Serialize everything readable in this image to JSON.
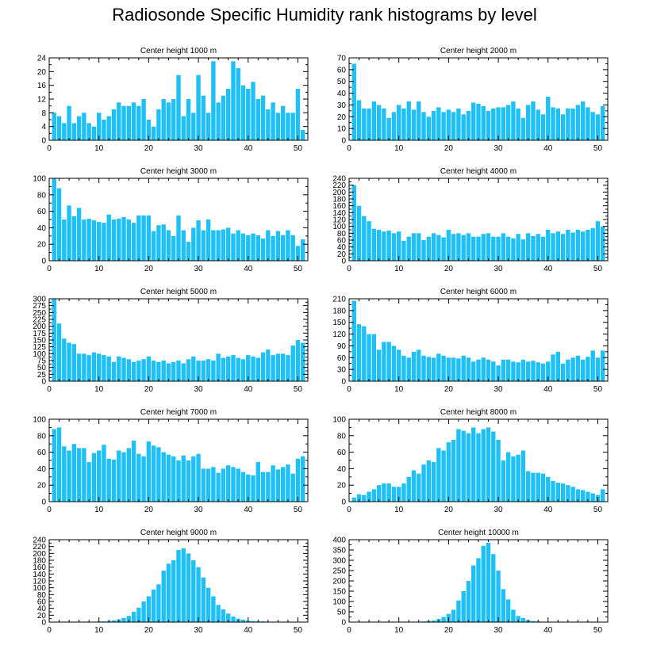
{
  "title": "Radiosonde Specific Humidity rank histograms by level",
  "colors": {
    "bar": "#1ec0f5",
    "axis": "#000000",
    "background": "#ffffff"
  },
  "chart_data": [
    {
      "type": "bar",
      "title": "Center height 1000 m",
      "xlim": [
        0,
        52
      ],
      "ylim": [
        0,
        24
      ],
      "xticks": [
        0,
        10,
        20,
        30,
        40,
        50
      ],
      "yticks": [
        0,
        4,
        8,
        12,
        16,
        20,
        24
      ],
      "x": [
        1,
        2,
        3,
        4,
        5,
        6,
        7,
        8,
        9,
        10,
        11,
        12,
        13,
        14,
        15,
        16,
        17,
        18,
        19,
        20,
        21,
        22,
        23,
        24,
        25,
        26,
        27,
        28,
        29,
        30,
        31,
        32,
        33,
        34,
        35,
        36,
        37,
        38,
        39,
        40,
        41,
        42,
        43,
        44,
        45,
        46,
        47,
        48,
        49,
        50,
        51
      ],
      "values": [
        8,
        7,
        5,
        10,
        5,
        7,
        8,
        5,
        4,
        8,
        6,
        7,
        9,
        11,
        10,
        10,
        11,
        10,
        12,
        6,
        4,
        9,
        12,
        11,
        12,
        19,
        7,
        12,
        8,
        19,
        13,
        8,
        23,
        11,
        13,
        15,
        23,
        21,
        16,
        15,
        17,
        12,
        13,
        9,
        11,
        8,
        10,
        8,
        8,
        15,
        3
      ]
    },
    {
      "type": "bar",
      "title": "Center height 2000 m",
      "xlim": [
        0,
        52
      ],
      "ylim": [
        0,
        70
      ],
      "xticks": [
        0,
        10,
        20,
        30,
        40,
        50
      ],
      "yticks": [
        0,
        10,
        20,
        30,
        40,
        50,
        60,
        70
      ],
      "x": [
        1,
        2,
        3,
        4,
        5,
        6,
        7,
        8,
        9,
        10,
        11,
        12,
        13,
        14,
        15,
        16,
        17,
        18,
        19,
        20,
        21,
        22,
        23,
        24,
        25,
        26,
        27,
        28,
        29,
        30,
        31,
        32,
        33,
        34,
        35,
        36,
        37,
        38,
        39,
        40,
        41,
        42,
        43,
        44,
        45,
        46,
        47,
        48,
        49,
        50,
        51
      ],
      "values": [
        65,
        34,
        27,
        27,
        33,
        30,
        27,
        19,
        24,
        30,
        27,
        33,
        26,
        33,
        24,
        20,
        25,
        28,
        24,
        26,
        24,
        27,
        22,
        25,
        32,
        31,
        29,
        25,
        27,
        28,
        28,
        30,
        33,
        27,
        19,
        30,
        33,
        26,
        22,
        37,
        28,
        27,
        22,
        27,
        27,
        30,
        33,
        28,
        24,
        22,
        29
      ]
    },
    {
      "type": "bar",
      "title": "Center height 3000 m",
      "xlim": [
        0,
        52
      ],
      "ylim": [
        0,
        100
      ],
      "xticks": [
        0,
        10,
        20,
        30,
        40,
        50
      ],
      "yticks": [
        0,
        20,
        40,
        60,
        80,
        100
      ],
      "x": [
        1,
        2,
        3,
        4,
        5,
        6,
        7,
        8,
        9,
        10,
        11,
        12,
        13,
        14,
        15,
        16,
        17,
        18,
        19,
        20,
        21,
        22,
        23,
        24,
        25,
        26,
        27,
        28,
        29,
        30,
        31,
        32,
        33,
        34,
        35,
        36,
        37,
        38,
        39,
        40,
        41,
        42,
        43,
        44,
        45,
        46,
        47,
        48,
        49,
        50,
        51
      ],
      "values": [
        100,
        88,
        50,
        67,
        54,
        64,
        50,
        51,
        49,
        47,
        46,
        56,
        50,
        51,
        53,
        50,
        46,
        55,
        55,
        55,
        36,
        43,
        44,
        37,
        30,
        55,
        37,
        23,
        40,
        49,
        37,
        50,
        37,
        37,
        38,
        40,
        33,
        37,
        33,
        31,
        33,
        31,
        27,
        37,
        30,
        36,
        31,
        37,
        31,
        18,
        26
      ]
    },
    {
      "type": "bar",
      "title": "Center height 4000 m",
      "xlim": [
        0,
        52
      ],
      "ylim": [
        0,
        240
      ],
      "xticks": [
        0,
        10,
        20,
        30,
        40,
        50
      ],
      "yticks": [
        0,
        20,
        40,
        60,
        80,
        100,
        120,
        140,
        160,
        180,
        200,
        220,
        240
      ],
      "x": [
        1,
        2,
        3,
        4,
        5,
        6,
        7,
        8,
        9,
        10,
        11,
        12,
        13,
        14,
        15,
        16,
        17,
        18,
        19,
        20,
        21,
        22,
        23,
        24,
        25,
        26,
        27,
        28,
        29,
        30,
        31,
        32,
        33,
        34,
        35,
        36,
        37,
        38,
        39,
        40,
        41,
        42,
        43,
        44,
        45,
        46,
        47,
        48,
        49,
        50,
        51
      ],
      "values": [
        220,
        160,
        130,
        115,
        93,
        90,
        85,
        88,
        80,
        85,
        58,
        70,
        80,
        80,
        60,
        70,
        80,
        75,
        68,
        90,
        78,
        80,
        75,
        80,
        70,
        70,
        78,
        80,
        70,
        70,
        80,
        70,
        65,
        78,
        62,
        80,
        72,
        78,
        70,
        90,
        80,
        85,
        78,
        90,
        82,
        90,
        85,
        90,
        95,
        115,
        100
      ]
    },
    {
      "type": "bar",
      "title": "Center height 5000 m",
      "xlim": [
        0,
        52
      ],
      "ylim": [
        0,
        300
      ],
      "xticks": [
        0,
        10,
        20,
        30,
        40,
        50
      ],
      "yticks": [
        0,
        25,
        50,
        75,
        100,
        125,
        150,
        175,
        200,
        225,
        250,
        275,
        300
      ],
      "x": [
        1,
        2,
        3,
        4,
        5,
        6,
        7,
        8,
        9,
        10,
        11,
        12,
        13,
        14,
        15,
        16,
        17,
        18,
        19,
        20,
        21,
        22,
        23,
        24,
        25,
        26,
        27,
        28,
        29,
        30,
        31,
        32,
        33,
        34,
        35,
        36,
        37,
        38,
        39,
        40,
        41,
        42,
        43,
        44,
        45,
        46,
        47,
        48,
        49,
        50,
        51
      ],
      "values": [
        300,
        210,
        155,
        140,
        135,
        100,
        100,
        95,
        105,
        100,
        95,
        90,
        70,
        90,
        85,
        80,
        70,
        75,
        80,
        90,
        75,
        70,
        75,
        65,
        70,
        75,
        65,
        80,
        90,
        75,
        75,
        80,
        75,
        100,
        85,
        90,
        95,
        85,
        80,
        95,
        90,
        85,
        105,
        115,
        95,
        100,
        100,
        95,
        130,
        150,
        140
      ]
    },
    {
      "type": "bar",
      "title": "Center height 6000 m",
      "xlim": [
        0,
        52
      ],
      "ylim": [
        0,
        210
      ],
      "xticks": [
        0,
        10,
        20,
        30,
        40,
        50
      ],
      "yticks": [
        0,
        30,
        60,
        90,
        120,
        150,
        180,
        210
      ],
      "x": [
        1,
        2,
        3,
        4,
        5,
        6,
        7,
        8,
        9,
        10,
        11,
        12,
        13,
        14,
        15,
        16,
        17,
        18,
        19,
        20,
        21,
        22,
        23,
        24,
        25,
        26,
        27,
        28,
        29,
        30,
        31,
        32,
        33,
        34,
        35,
        36,
        37,
        38,
        39,
        40,
        41,
        42,
        43,
        44,
        45,
        46,
        47,
        48,
        49,
        50,
        51
      ],
      "values": [
        205,
        145,
        140,
        120,
        120,
        80,
        100,
        100,
        90,
        80,
        65,
        60,
        75,
        80,
        65,
        62,
        60,
        70,
        65,
        60,
        60,
        58,
        65,
        60,
        50,
        55,
        60,
        55,
        50,
        40,
        55,
        55,
        50,
        48,
        55,
        50,
        52,
        48,
        45,
        50,
        68,
        75,
        45,
        55,
        60,
        65,
        55,
        62,
        78,
        60,
        78
      ]
    },
    {
      "type": "bar",
      "title": "Center height 7000 m",
      "xlim": [
        0,
        52
      ],
      "ylim": [
        0,
        100
      ],
      "xticks": [
        0,
        10,
        20,
        30,
        40,
        50
      ],
      "yticks": [
        0,
        20,
        40,
        60,
        80,
        100
      ],
      "x": [
        1,
        2,
        3,
        4,
        5,
        6,
        7,
        8,
        9,
        10,
        11,
        12,
        13,
        14,
        15,
        16,
        17,
        18,
        19,
        20,
        21,
        22,
        23,
        24,
        25,
        26,
        27,
        28,
        29,
        30,
        31,
        32,
        33,
        34,
        35,
        36,
        37,
        38,
        39,
        40,
        41,
        42,
        43,
        44,
        45,
        46,
        47,
        48,
        49,
        50,
        51
      ],
      "values": [
        88,
        90,
        67,
        62,
        70,
        65,
        65,
        48,
        59,
        62,
        69,
        52,
        51,
        62,
        60,
        65,
        74,
        58,
        55,
        73,
        68,
        66,
        60,
        57,
        55,
        50,
        56,
        50,
        55,
        58,
        40,
        40,
        42,
        35,
        40,
        44,
        42,
        40,
        36,
        33,
        32,
        48,
        36,
        36,
        44,
        39,
        42,
        45,
        34,
        52,
        55
      ]
    },
    {
      "type": "bar",
      "title": "Center height 8000 m",
      "xlim": [
        0,
        52
      ],
      "ylim": [
        0,
        100
      ],
      "xticks": [
        0,
        10,
        20,
        30,
        40,
        50
      ],
      "yticks": [
        0,
        20,
        40,
        60,
        80,
        100
      ],
      "x": [
        1,
        2,
        3,
        4,
        5,
        6,
        7,
        8,
        9,
        10,
        11,
        12,
        13,
        14,
        15,
        16,
        17,
        18,
        19,
        20,
        21,
        22,
        23,
        24,
        25,
        26,
        27,
        28,
        29,
        30,
        31,
        32,
        33,
        34,
        35,
        36,
        37,
        38,
        39,
        40,
        41,
        42,
        43,
        44,
        45,
        46,
        47,
        48,
        49,
        50,
        51
      ],
      "values": [
        5,
        9,
        8,
        12,
        15,
        20,
        22,
        22,
        18,
        18,
        22,
        30,
        38,
        34,
        45,
        50,
        48,
        65,
        62,
        72,
        75,
        88,
        86,
        83,
        90,
        83,
        88,
        90,
        85,
        75,
        50,
        60,
        55,
        57,
        62,
        37,
        35,
        35,
        34,
        30,
        25,
        23,
        22,
        20,
        18,
        15,
        14,
        12,
        10,
        8,
        15
      ]
    },
    {
      "type": "bar",
      "title": "Center height 9000 m",
      "xlim": [
        0,
        52
      ],
      "ylim": [
        0,
        240
      ],
      "xticks": [
        0,
        10,
        20,
        30,
        40,
        50
      ],
      "yticks": [
        0,
        20,
        40,
        60,
        80,
        100,
        120,
        140,
        160,
        180,
        200,
        220,
        240
      ],
      "x": [
        1,
        2,
        3,
        4,
        5,
        6,
        7,
        8,
        9,
        10,
        11,
        12,
        13,
        14,
        15,
        16,
        17,
        18,
        19,
        20,
        21,
        22,
        23,
        24,
        25,
        26,
        27,
        28,
        29,
        30,
        31,
        32,
        33,
        34,
        35,
        36,
        37,
        38,
        39,
        40,
        41,
        42,
        43,
        44,
        45,
        46,
        47,
        48,
        49,
        50,
        51
      ],
      "values": [
        0,
        0,
        0,
        0,
        0,
        0,
        0,
        0,
        1,
        2,
        2,
        3,
        5,
        8,
        12,
        18,
        30,
        42,
        60,
        75,
        95,
        110,
        150,
        170,
        180,
        210,
        215,
        200,
        180,
        160,
        130,
        100,
        75,
        50,
        37,
        25,
        16,
        10,
        7,
        4,
        3,
        2,
        2,
        1,
        1,
        1,
        0,
        0,
        0,
        0,
        0
      ]
    },
    {
      "type": "bar",
      "title": "Center height 10000 m",
      "xlim": [
        0,
        52
      ],
      "ylim": [
        0,
        400
      ],
      "xticks": [
        0,
        10,
        20,
        30,
        40,
        50
      ],
      "yticks": [
        0,
        50,
        100,
        150,
        200,
        250,
        300,
        350,
        400
      ],
      "x": [
        1,
        2,
        3,
        4,
        5,
        6,
        7,
        8,
        9,
        10,
        11,
        12,
        13,
        14,
        15,
        16,
        17,
        18,
        19,
        20,
        21,
        22,
        23,
        24,
        25,
        26,
        27,
        28,
        29,
        30,
        31,
        32,
        33,
        34,
        35,
        36,
        37,
        38,
        39,
        40,
        41,
        42,
        43,
        44,
        45,
        46,
        47,
        48,
        49,
        50,
        51
      ],
      "values": [
        0,
        0,
        0,
        0,
        0,
        0,
        0,
        0,
        0,
        0,
        0,
        0,
        1,
        2,
        3,
        5,
        8,
        15,
        25,
        40,
        60,
        105,
        150,
        200,
        275,
        310,
        370,
        385,
        330,
        250,
        160,
        110,
        60,
        30,
        20,
        10,
        5,
        3,
        2,
        1,
        1,
        0,
        0,
        0,
        0,
        0,
        0,
        0,
        0,
        0,
        0
      ]
    }
  ]
}
